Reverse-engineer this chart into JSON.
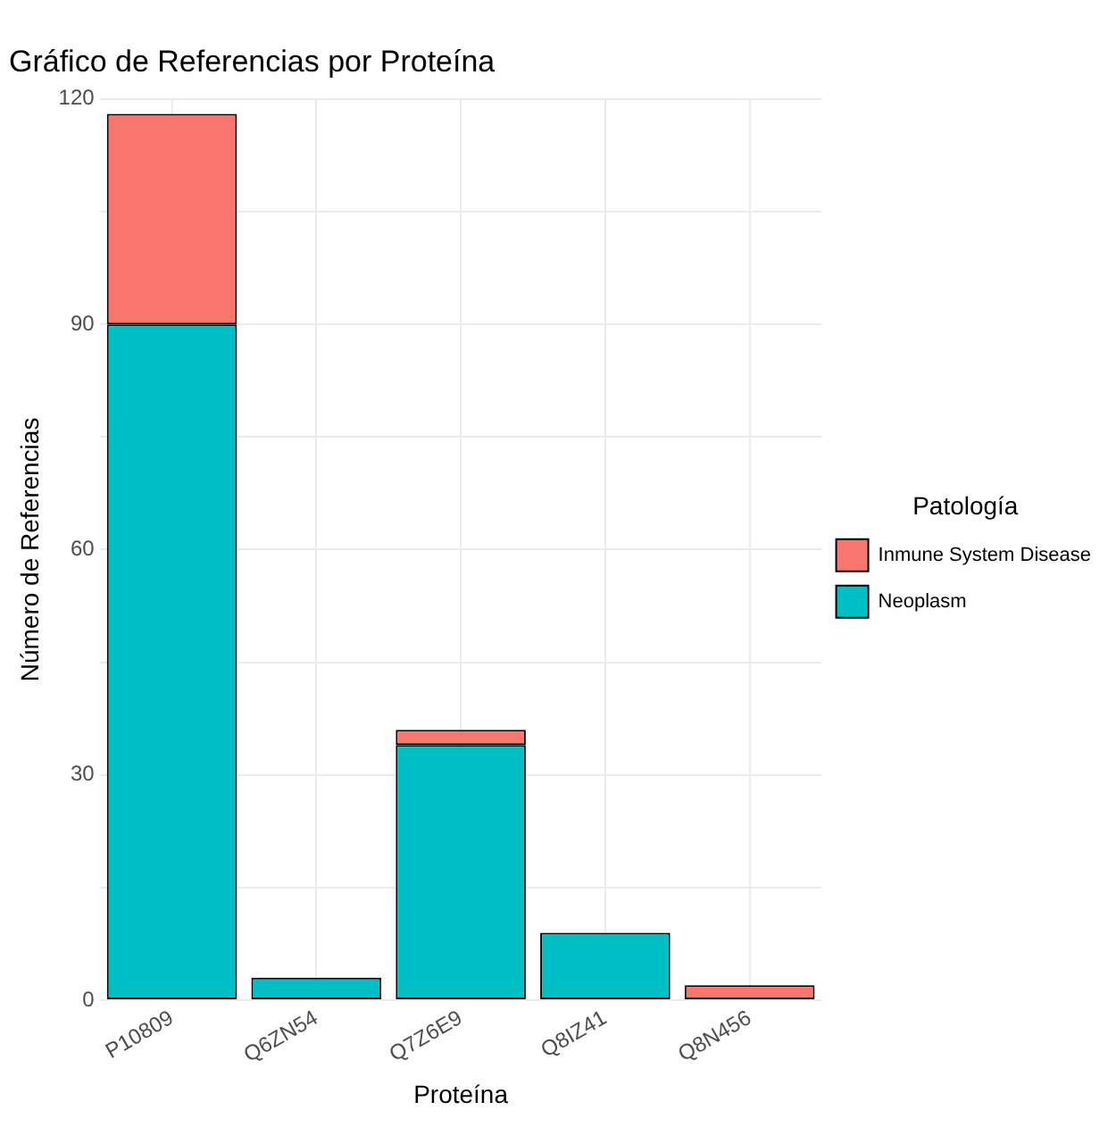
{
  "chart_data": {
    "type": "bar",
    "title": "Gráfico de Referencias por Proteína",
    "xlabel": "Proteína",
    "ylabel": "Número de Referencias",
    "legend_title": "Patología",
    "categories": [
      "P10809",
      "Q6ZN54",
      "Q7Z6E9",
      "Q8IZ41",
      "Q8N456"
    ],
    "series": [
      {
        "name": "Neoplasm",
        "color": "#00bfc4",
        "values": [
          90,
          3,
          34,
          9,
          0
        ]
      },
      {
        "name": "Inmune System Disease",
        "color": "#f8766d",
        "values": [
          28,
          0,
          2,
          0,
          2
        ]
      }
    ],
    "stacked": true,
    "ylim": [
      0,
      120
    ],
    "yticks": [
      0,
      {
        "value": 15,
        "label": null
      },
      30,
      {
        "value": 45,
        "label": null
      },
      60,
      {
        "value": 75,
        "label": null
      },
      90,
      {
        "value": 105,
        "label": null
      },
      120
    ],
    "grid": true,
    "legend": "right"
  }
}
